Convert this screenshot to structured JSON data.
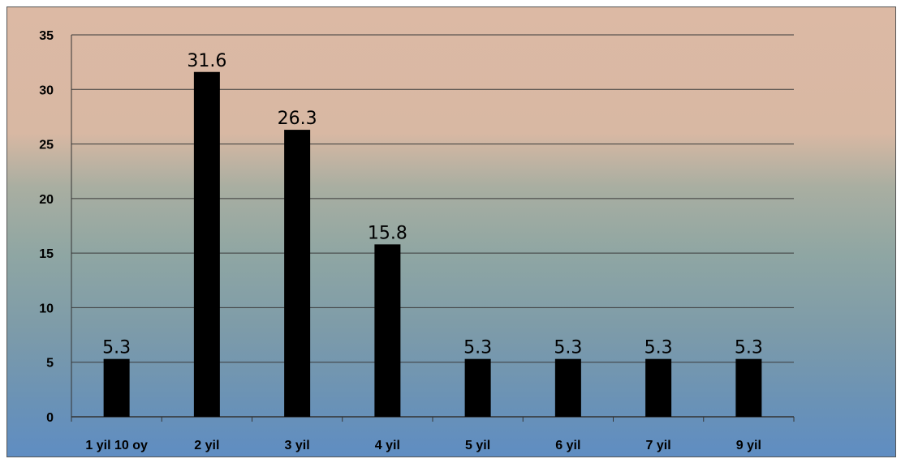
{
  "chart_data": {
    "type": "bar",
    "title": "",
    "xlabel": "",
    "ylabel": "",
    "categories": [
      "1 yil 10 oy",
      "2 yil",
      "3 yil",
      "4 yil",
      "5 yil",
      "6 yil",
      "7 yil",
      "9 yil"
    ],
    "values": [
      5.3,
      31.6,
      26.3,
      15.8,
      5.3,
      5.3,
      5.3,
      5.3
    ],
    "data_labels": [
      "5.3",
      "31.6",
      "26.3",
      "15.8",
      "5.3",
      "5.3",
      "5.3",
      "5.3"
    ],
    "ylim": [
      0,
      35
    ],
    "yticks": [
      0,
      5,
      10,
      15,
      20,
      25,
      30,
      35
    ],
    "grid": true,
    "legend": "none",
    "colors": {
      "bar": "#000000",
      "gridline": "#3a3a3a",
      "background_top": "#dcb9a4",
      "background_bottom": "#5f8dc2"
    }
  }
}
